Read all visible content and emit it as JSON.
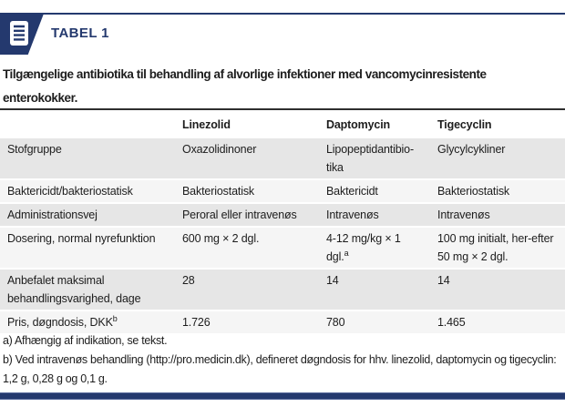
{
  "banner": {
    "title": "TABEL 1",
    "icon": "document-lines-icon"
  },
  "caption": "Tilgængelige antibiotika til behandling af alvorlige infektioner med vancomycinresistente enterokokker.",
  "table": {
    "columns": [
      "",
      "Linezolid",
      "Daptomycin",
      "Tigecyclin"
    ],
    "rows": [
      {
        "label": {
          "text": "Stofgruppe"
        },
        "cells": [
          {
            "text": "Oxazolidinoner"
          },
          {
            "text": "Lipopeptidantibio-tika"
          },
          {
            "text": "Glycylcykliner"
          }
        ]
      },
      {
        "label": {
          "text": "Baktericidt/bakteriostatisk"
        },
        "cells": [
          {
            "text": "Bakteriostatisk"
          },
          {
            "text": "Baktericidt"
          },
          {
            "text": "Bakteriostatisk"
          }
        ]
      },
      {
        "label": {
          "text": "Administrationsvej"
        },
        "cells": [
          {
            "text": "Peroral eller intravenøs"
          },
          {
            "text": "Intravenøs"
          },
          {
            "text": "Intravenøs"
          }
        ]
      },
      {
        "label": {
          "text": "Dosering, normal nyrefunktion"
        },
        "cells": [
          {
            "text": "600 mg × 2 dgl."
          },
          {
            "text": "4-12 mg/kg × 1 dgl.",
            "sup": "a"
          },
          {
            "text": "100 mg initialt, her-efter 50 mg × 2 dgl."
          }
        ]
      },
      {
        "label": {
          "text": "Anbefalet maksimal behandlingsvarighed, dage"
        },
        "cells": [
          {
            "text": "28"
          },
          {
            "text": "14"
          },
          {
            "text": "14"
          }
        ]
      },
      {
        "label": {
          "text": "Pris, døgndosis, DKK",
          "sup": "b"
        },
        "cells": [
          {
            "text": "1.726"
          },
          {
            "text": "780"
          },
          {
            "text": "1.465"
          }
        ]
      }
    ]
  },
  "footnotes": [
    "a) Afhængig af indikation, se tekst.",
    "b) Ved intravenøs behandling (http://pro.medicin.dk), defineret døgndosis for hhv. linezolid, daptomycin og tigecyclin: 1,2 g, 0,28 g og 0,1 g."
  ],
  "colors": {
    "navy": "#24396e",
    "ink": "#1d1d1d",
    "stripe-dark": "#e6e6e6",
    "stripe-light": "#f5f5f5",
    "rule-dark": "#2e2e2e"
  }
}
